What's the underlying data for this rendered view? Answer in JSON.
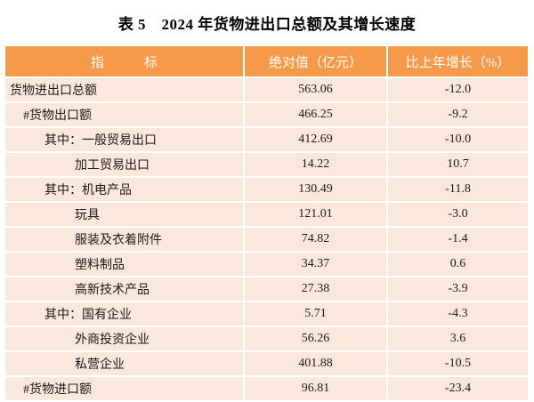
{
  "title": "表 5　2024 年货物进出口总额及其增长速度",
  "table": {
    "columns": [
      "指　　　标",
      "绝对值（亿元）",
      "比上年增长（%）"
    ],
    "rows": [
      {
        "label": "货物进出口总额",
        "value": "563.06",
        "growth": "-12.0"
      },
      {
        "label": "#货物出口额",
        "value": "466.25",
        "growth": "-9.2"
      },
      {
        "label": "其中：一般贸易出口",
        "value": "412.69",
        "growth": "-10.0"
      },
      {
        "label": "加工贸易出口",
        "value": "14.22",
        "growth": "10.7"
      },
      {
        "label": "其中：机电产品",
        "value": "130.49",
        "growth": "-11.8"
      },
      {
        "label": "玩具",
        "value": "121.01",
        "growth": "-3.0"
      },
      {
        "label": "服装及衣着附件",
        "value": "74.82",
        "growth": "-1.4"
      },
      {
        "label": "塑料制品",
        "value": "34.37",
        "growth": "0.6"
      },
      {
        "label": "高新技术产品",
        "value": "27.38",
        "growth": "-3.9"
      },
      {
        "label": "其中：国有企业",
        "value": "5.71",
        "growth": "-4.3"
      },
      {
        "label": "外商投资企业",
        "value": "56.26",
        "growth": "3.6"
      },
      {
        "label": "私营企业",
        "value": "401.88",
        "growth": "-10.5"
      },
      {
        "label": "#货物进口额",
        "value": "96.81",
        "growth": "-23.4"
      }
    ]
  },
  "chart_data": {
    "type": "table",
    "title": "表 5　2024 年货物进出口总额及其增长速度",
    "columns": [
      "指标",
      "绝对值（亿元）",
      "比上年增长（%）"
    ],
    "rows": [
      [
        "货物进出口总额",
        563.06,
        -12.0
      ],
      [
        "#货物出口额",
        466.25,
        -9.2
      ],
      [
        "其中：一般贸易出口",
        412.69,
        -10.0
      ],
      [
        "加工贸易出口",
        14.22,
        10.7
      ],
      [
        "其中：机电产品",
        130.49,
        -11.8
      ],
      [
        "玩具",
        121.01,
        -3.0
      ],
      [
        "服装及衣着附件",
        74.82,
        -1.4
      ],
      [
        "塑料制品",
        34.37,
        0.6
      ],
      [
        "高新技术产品",
        27.38,
        -3.9
      ],
      [
        "其中：国有企业",
        5.71,
        -4.3
      ],
      [
        "外商投资企业",
        56.26,
        3.6
      ],
      [
        "私营企业",
        401.88,
        -10.5
      ],
      [
        "#货物进口额",
        96.81,
        -23.4
      ]
    ]
  },
  "colors": {
    "header_bg": "#F5994A",
    "row_bg": "#FBE8DC",
    "grid_line": "#FFFFFF",
    "header_text": "#FFFFFF",
    "body_text": "#1A1A1A",
    "title_text": "#000000"
  }
}
